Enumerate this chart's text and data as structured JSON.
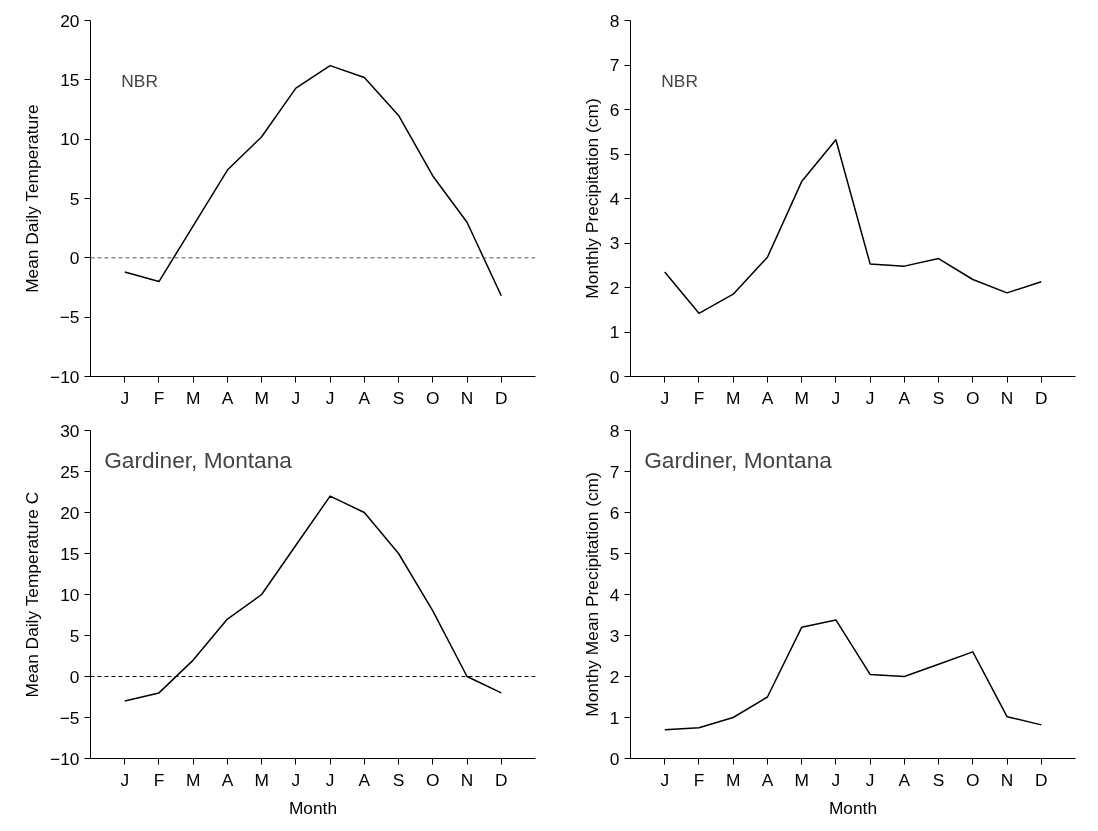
{
  "chart_data": [
    {
      "type": "line",
      "ylabel": "Mean Daily Temperature",
      "annotations": [
        "NBR"
      ],
      "categories": [
        "J",
        "F",
        "M",
        "A",
        "M",
        "J",
        "J",
        "A",
        "S",
        "O",
        "N",
        "D"
      ],
      "series": [
        {
          "color": "#000000",
          "values": [
            -1.2,
            -2.0,
            2.7,
            7.4,
            10.2,
            14.3,
            16.2,
            15.2,
            12.0,
            6.9,
            3.0,
            -3.2
          ]
        }
      ],
      "ylim": [
        -10,
        20
      ],
      "yticks": [
        -10,
        -5,
        0,
        5,
        10,
        15,
        20
      ],
      "grid": false,
      "marker": "none",
      "line_style": "solid",
      "ref_lines": [
        {
          "axis": "y",
          "value": 0,
          "color": "#555555",
          "line_style": "dashed"
        }
      ]
    },
    {
      "type": "line",
      "ylabel": "Monthly Precipitation (cm)",
      "annotations": [
        "NBR"
      ],
      "categories": [
        "J",
        "F",
        "M",
        "A",
        "M",
        "J",
        "J",
        "A",
        "S",
        "O",
        "N",
        "D"
      ],
      "series": [
        {
          "color": "#000000",
          "values": [
            2.35,
            1.42,
            1.85,
            2.68,
            4.38,
            5.32,
            2.53,
            2.48,
            2.65,
            2.18,
            1.88,
            2.13
          ]
        }
      ],
      "ylim": [
        0,
        8
      ],
      "yticks": [
        0,
        1,
        2,
        3,
        4,
        5,
        6,
        7,
        8
      ],
      "grid": false,
      "marker": "none",
      "line_style": "solid"
    },
    {
      "type": "line",
      "xlabel": "Month",
      "ylabel": "Mean Daily Temperature C",
      "annotations": [
        "Gardiner, Montana"
      ],
      "categories": [
        "J",
        "F",
        "M",
        "A",
        "M",
        "J",
        "J",
        "A",
        "S",
        "O",
        "N",
        "D"
      ],
      "series": [
        {
          "color": "#000000",
          "values": [
            -3,
            -2,
            2,
            7,
            10,
            16,
            22,
            20,
            15,
            8,
            0,
            -2
          ]
        }
      ],
      "ylim": [
        -10,
        30
      ],
      "yticks": [
        -10,
        -5,
        0,
        5,
        10,
        15,
        20,
        25,
        30
      ],
      "grid": false,
      "marker": "none",
      "line_style": "solid",
      "ref_lines": [
        {
          "axis": "y",
          "value": 0,
          "color": "#000000",
          "line_style": "dashed"
        }
      ]
    },
    {
      "type": "line",
      "xlabel": "Month",
      "ylabel": "Monthy Mean Precipitation (cm)",
      "annotations": [
        "Gardiner, Montana"
      ],
      "categories": [
        "J",
        "F",
        "M",
        "A",
        "M",
        "J",
        "J",
        "A",
        "S",
        "O",
        "N",
        "D"
      ],
      "series": [
        {
          "color": "#000000",
          "values": [
            0.7,
            0.75,
            1.0,
            1.5,
            3.2,
            3.38,
            2.05,
            2.0,
            2.3,
            2.6,
            1.02,
            0.82
          ]
        }
      ],
      "ylim": [
        0,
        8
      ],
      "yticks": [
        0,
        1,
        2,
        3,
        4,
        5,
        6,
        7,
        8
      ],
      "grid": false,
      "marker": "none",
      "line_style": "solid"
    }
  ]
}
